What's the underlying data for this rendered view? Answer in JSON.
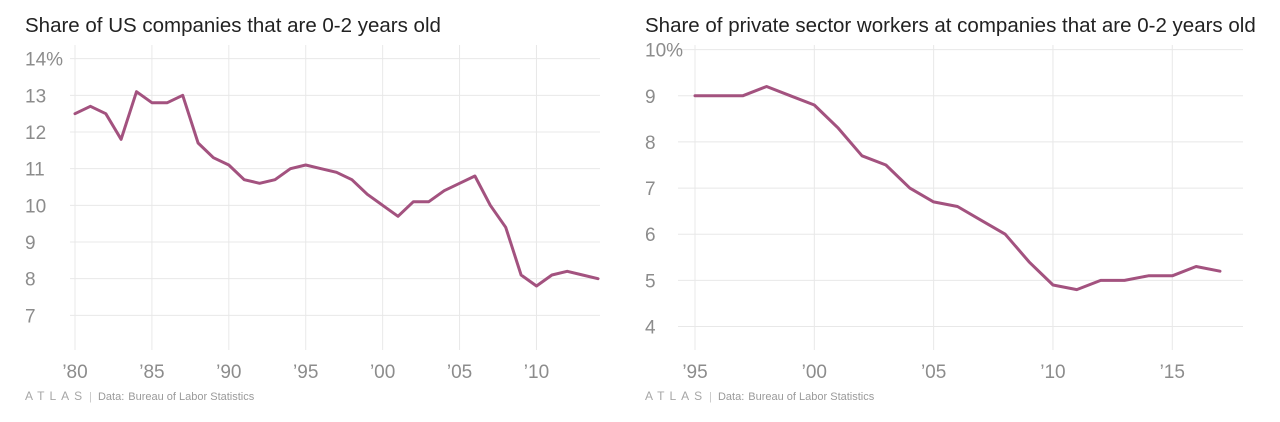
{
  "chart_data": [
    {
      "type": "line",
      "title": "Share of US companies that are 0-2 years old",
      "y_ticks": [
        7,
        8,
        9,
        10,
        11,
        12,
        13,
        14
      ],
      "y_tick_labels": [
        "7",
        "8",
        "9",
        "10",
        "11",
        "12",
        "13",
        "14%"
      ],
      "ylim": [
        6.3,
        14.1
      ],
      "x_ticks": [
        1980,
        1985,
        1990,
        1995,
        2000,
        2005,
        2010
      ],
      "x_tick_labels": [
        "’80",
        "’85",
        "’90",
        "’95",
        "’00",
        "’05",
        "’10"
      ],
      "xlim": [
        1980,
        2014
      ],
      "grid": true,
      "series": [
        {
          "color": "#a3527f",
          "x": [
            1980,
            1981,
            1982,
            1983,
            1984,
            1985,
            1986,
            1987,
            1988,
            1989,
            1990,
            1991,
            1992,
            1993,
            1994,
            1995,
            1996,
            1997,
            1998,
            1999,
            2000,
            2001,
            2002,
            2003,
            2004,
            2005,
            2006,
            2007,
            2008,
            2009,
            2010,
            2011,
            2012,
            2013,
            2014
          ],
          "y": [
            12.5,
            12.7,
            12.5,
            11.8,
            13.1,
            12.8,
            12.8,
            13.0,
            11.7,
            11.3,
            11.1,
            10.7,
            10.6,
            10.7,
            11.0,
            11.1,
            11.0,
            10.9,
            10.7,
            10.3,
            10.0,
            9.7,
            10.1,
            10.1,
            10.4,
            10.6,
            10.8,
            10.0,
            9.4,
            8.1,
            7.8,
            8.1,
            8.2,
            8.1,
            8.0
          ]
        }
      ]
    },
    {
      "type": "line",
      "title": "Share of private sector workers at companies that are 0-2 years old",
      "y_ticks": [
        4,
        5,
        6,
        7,
        8,
        9,
        10
      ],
      "y_tick_labels": [
        "4",
        "5",
        "6",
        "7",
        "8",
        "9",
        "10%"
      ],
      "ylim": [
        3.6,
        10.1
      ],
      "x_ticks": [
        1995,
        2000,
        2005,
        2010,
        2015
      ],
      "x_tick_labels": [
        "’95",
        "’00",
        "’05",
        "’10",
        "’15"
      ],
      "xlim": [
        1995,
        2017
      ],
      "grid": true,
      "series": [
        {
          "color": "#a3527f",
          "x": [
            1995,
            1996,
            1997,
            1998,
            1999,
            2000,
            2001,
            2002,
            2003,
            2004,
            2005,
            2006,
            2007,
            2008,
            2009,
            2010,
            2011,
            2012,
            2013,
            2014,
            2015,
            2016,
            2017
          ],
          "y": [
            9.0,
            9.0,
            9.0,
            9.2,
            9.0,
            8.8,
            8.3,
            7.7,
            7.5,
            7.0,
            6.7,
            6.6,
            6.3,
            6.0,
            5.4,
            4.9,
            4.8,
            5.0,
            5.0,
            5.1,
            5.1,
            5.3,
            5.2
          ]
        }
      ]
    }
  ],
  "footer": {
    "brand": "ATLAS",
    "separator": "|",
    "data_label": "Data:",
    "source": "Bureau of Labor Statistics"
  },
  "colors": {
    "line": "#a3527f",
    "grid": "#e8e8e8",
    "tick_label": "#8c8c8c",
    "title": "#222222"
  }
}
